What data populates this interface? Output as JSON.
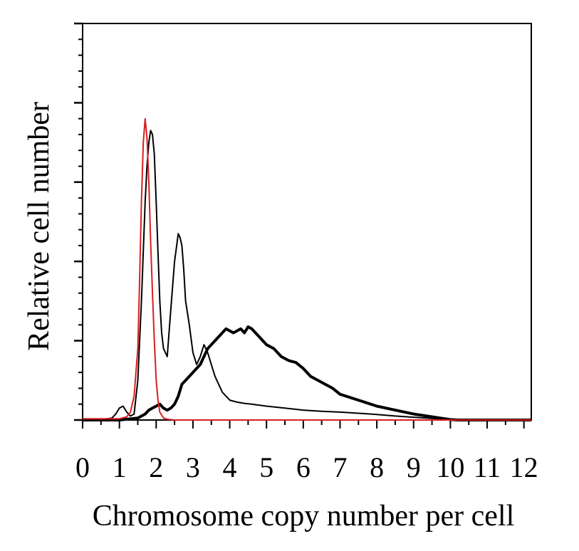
{
  "chart_data": {
    "type": "line",
    "xlabel": "Chromosome copy number per cell",
    "ylabel": "Relative cell number",
    "xlim": [
      0,
      12.2
    ],
    "ylim": [
      0,
      100
    ],
    "xticks": [
      "0",
      "1",
      "2",
      "3",
      "4",
      "5",
      "6",
      "7",
      "8",
      "9",
      "10",
      "11",
      "12"
    ],
    "grid": false,
    "legend": "none",
    "series": [
      {
        "color": "#d81e1e",
        "style": "thin",
        "x": [
          0,
          1.0,
          1.2,
          1.3,
          1.4,
          1.5,
          1.55,
          1.6,
          1.65,
          1.7,
          1.75,
          1.8,
          1.85,
          1.9,
          1.95,
          2.0,
          2.05,
          2.1,
          2.2,
          2.3,
          2.5,
          3,
          4,
          6,
          8,
          10,
          12.2
        ],
        "y": [
          0.3,
          0.3,
          0.8,
          2,
          6,
          18,
          35,
          55,
          70,
          76,
          71,
          60,
          45,
          32,
          20,
          10,
          5,
          2,
          0.5,
          0.2,
          0,
          0,
          0,
          0,
          0,
          0,
          0
        ]
      },
      {
        "color": "#000000",
        "style": "thin",
        "x": [
          0,
          0.5,
          0.8,
          0.9,
          1.0,
          1.1,
          1.2,
          1.3,
          1.4,
          1.5,
          1.6,
          1.7,
          1.75,
          1.8,
          1.85,
          1.9,
          1.95,
          2.0,
          2.05,
          2.1,
          2.15,
          2.2,
          2.3,
          2.4,
          2.5,
          2.6,
          2.65,
          2.7,
          2.75,
          2.8,
          2.9,
          3.0,
          3.1,
          3.2,
          3.3,
          3.4,
          3.5,
          3.6,
          3.7,
          3.8,
          3.9,
          4.0,
          4.2,
          4.4,
          4.6,
          5.0,
          5.5,
          6.0,
          6.5,
          7.0,
          7.5,
          8.0,
          8.5,
          9.0,
          9.5,
          10.0,
          10.5,
          11.0,
          12.2
        ],
        "y": [
          0,
          0.1,
          0.5,
          1.5,
          3,
          3.5,
          2,
          1,
          1.5,
          10,
          30,
          55,
          64,
          70,
          73,
          72,
          67,
          55,
          42,
          30,
          22,
          18,
          16,
          28,
          40,
          47,
          46,
          44,
          38,
          30,
          24,
          17,
          14,
          16,
          19,
          17,
          14,
          11,
          9,
          7,
          6,
          5,
          4.5,
          4.2,
          4,
          3.5,
          3,
          2.5,
          2.2,
          2,
          1.7,
          1.4,
          1,
          0.7,
          0.4,
          0.2,
          0.1,
          0,
          0
        ]
      },
      {
        "color": "#000000",
        "style": "thick",
        "x": [
          0,
          1.0,
          1.5,
          1.7,
          1.8,
          1.9,
          2.0,
          2.1,
          2.2,
          2.3,
          2.4,
          2.5,
          2.6,
          2.7,
          2.8,
          3.0,
          3.2,
          3.4,
          3.6,
          3.7,
          3.8,
          3.9,
          4.0,
          4.1,
          4.2,
          4.3,
          4.4,
          4.5,
          4.6,
          4.7,
          4.8,
          4.9,
          5.0,
          5.2,
          5.4,
          5.6,
          5.8,
          6.0,
          6.2,
          6.4,
          6.6,
          6.8,
          7.0,
          7.5,
          8.0,
          8.5,
          9.0,
          9.5,
          9.8,
          10.0,
          10.2,
          12.2
        ],
        "y": [
          0,
          0,
          0.5,
          1.5,
          2.5,
          3,
          3.5,
          4,
          3,
          2.5,
          3,
          4,
          6,
          9,
          10,
          12,
          14,
          18,
          20,
          21,
          22,
          23,
          22.5,
          22,
          22.5,
          23,
          22,
          23.5,
          23,
          22,
          21,
          20,
          19,
          18,
          16,
          15,
          14.5,
          13,
          11,
          10,
          9,
          8,
          6.5,
          5,
          3.5,
          2.5,
          1.5,
          0.8,
          0.4,
          0.1,
          0,
          0
        ]
      }
    ]
  }
}
